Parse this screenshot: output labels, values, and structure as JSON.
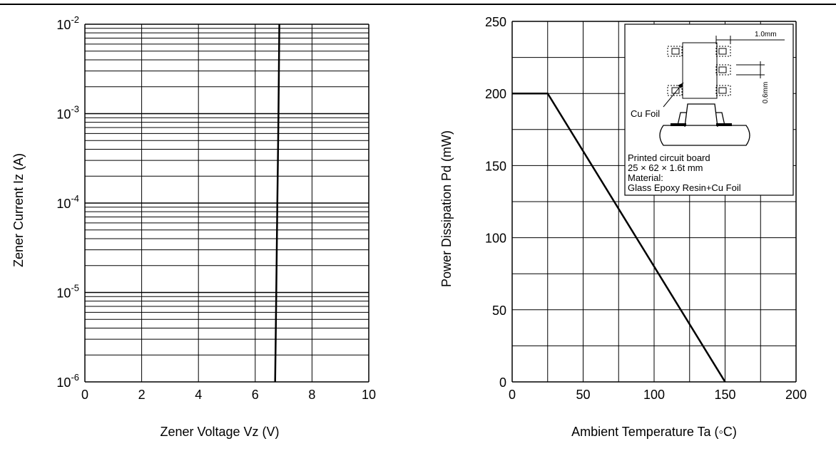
{
  "chart_data": [
    {
      "type": "line",
      "xlabel": "Zener Voltage    Vz   (V)",
      "ylabel": "Zener Current    Iz     (A)",
      "xlim": [
        0,
        10
      ],
      "ylim": [
        1e-06,
        0.01
      ],
      "yscale": "log",
      "grid": true,
      "xticks": [
        "0",
        "2",
        "4",
        "6",
        "8",
        "10"
      ],
      "yticks": [
        {
          "base": "10",
          "exp": "-6"
        },
        {
          "base": "10",
          "exp": "-5"
        },
        {
          "base": "10",
          "exp": "-4"
        },
        {
          "base": "10",
          "exp": "-3"
        },
        {
          "base": "10",
          "exp": "-2"
        }
      ],
      "series": [
        {
          "x": [
            6.7,
            6.72,
            6.74,
            6.76,
            6.78,
            6.8,
            6.82,
            6.85
          ],
          "y": [
            1e-06,
            3e-06,
            1e-05,
            3e-05,
            0.0001,
            0.0003,
            0.001,
            0.01
          ]
        }
      ]
    },
    {
      "type": "line",
      "xlabel": "Ambient Temperature Ta (◦C)",
      "ylabel": "Power Dissipation   Pd  (mW)",
      "xlim": [
        0,
        200
      ],
      "ylim": [
        0,
        250
      ],
      "grid": true,
      "xticks": [
        "0",
        "50",
        "100",
        "150",
        "200"
      ],
      "yticks": [
        "0",
        "50",
        "100",
        "150",
        "200",
        "250"
      ],
      "series": [
        {
          "x": [
            0,
            25,
            150
          ],
          "y": [
            200,
            200,
            0
          ]
        }
      ],
      "inset": {
        "dim_pad_width": "1.0mm",
        "dim_pad_gap": "0.6mm",
        "cu_foil_label": "Cu Foil",
        "board_lines": [
          "Printed circuit board",
          "25 × 62 × 1.6t mm",
          "Material:",
          "  Glass Epoxy Resin+Cu Foil"
        ]
      }
    }
  ]
}
